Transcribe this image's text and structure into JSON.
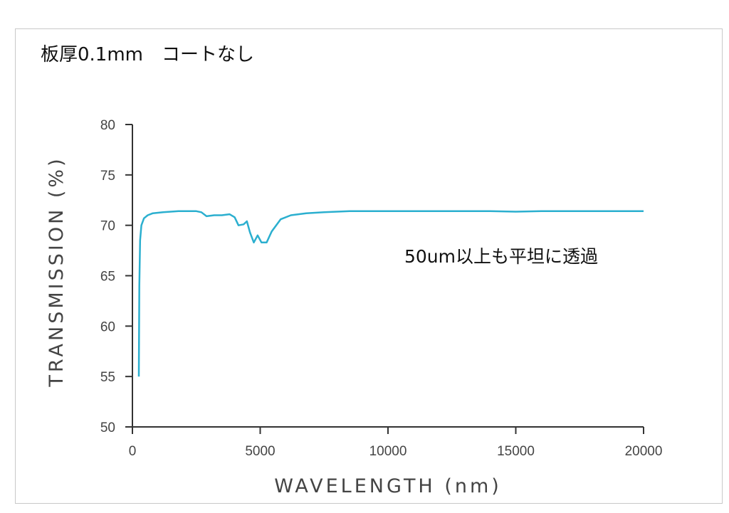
{
  "title": "板厚0.1mm　コートなし",
  "annotation": "50um以上も平坦に透過",
  "colors": {
    "series": "#2bafcf",
    "axis": "#333333",
    "text": "#444444",
    "frame": "#c8c8c8"
  },
  "chart_data": {
    "type": "line",
    "xlabel": "WAVELENGTH (nm)",
    "ylabel": "TRANSMISSION (%)",
    "xlim": [
      0,
      20000
    ],
    "ylim": [
      50,
      80
    ],
    "x_ticks": [
      0,
      5000,
      10000,
      15000,
      20000
    ],
    "y_ticks": [
      50,
      55,
      60,
      65,
      70,
      75,
      80
    ],
    "grid": false,
    "legend": "none",
    "series": [
      {
        "points": [
          [
            250,
            55
          ],
          [
            270,
            64
          ],
          [
            300,
            68.5
          ],
          [
            350,
            70.0
          ],
          [
            450,
            70.7
          ],
          [
            600,
            71.0
          ],
          [
            800,
            71.2
          ],
          [
            1200,
            71.3
          ],
          [
            1800,
            71.4
          ],
          [
            2500,
            71.4
          ],
          [
            2700,
            71.3
          ],
          [
            2900,
            70.9
          ],
          [
            3200,
            71.0
          ],
          [
            3500,
            71.0
          ],
          [
            3800,
            71.1
          ],
          [
            4000,
            70.8
          ],
          [
            4150,
            70.0
          ],
          [
            4350,
            70.1
          ],
          [
            4480,
            70.4
          ],
          [
            4600,
            69.3
          ],
          [
            4750,
            68.3
          ],
          [
            4900,
            69.0
          ],
          [
            5050,
            68.3
          ],
          [
            5250,
            68.3
          ],
          [
            5450,
            69.4
          ],
          [
            5800,
            70.6
          ],
          [
            6200,
            71.0
          ],
          [
            6800,
            71.2
          ],
          [
            7500,
            71.3
          ],
          [
            8500,
            71.4
          ],
          [
            10000,
            71.4
          ],
          [
            12000,
            71.4
          ],
          [
            14000,
            71.4
          ],
          [
            15000,
            71.35
          ],
          [
            16000,
            71.4
          ],
          [
            18000,
            71.4
          ],
          [
            20000,
            71.4
          ]
        ]
      }
    ]
  }
}
